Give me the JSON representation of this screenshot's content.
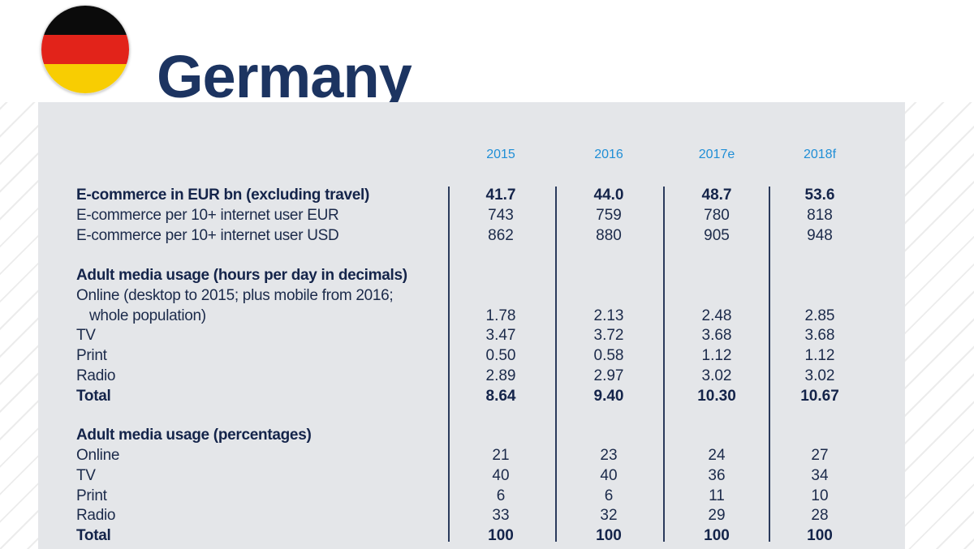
{
  "title": "Germany",
  "flag_colors": [
    "#0b0b0b",
    "#e2231a",
    "#f8cd02"
  ],
  "years": [
    "2015",
    "2016",
    "2017e",
    "2018f"
  ],
  "rows": [
    {
      "label": "E-commerce in EUR bn (excluding travel)",
      "values": [
        "41.7",
        "44.0",
        "48.7",
        "53.6"
      ]
    },
    {
      "label": "E-commerce per 10+ internet user EUR",
      "values": [
        "743",
        "759",
        "780",
        "818"
      ]
    },
    {
      "label": "E-commerce per 10+ internet user USD",
      "values": [
        "862",
        "880",
        "905",
        "948"
      ]
    },
    {
      "label": "Adult media usage (hours per day in decimals)"
    },
    {
      "label": "Online (desktop to 2015; plus mobile from 2016;"
    },
    {
      "label": "whole population)",
      "values": [
        "1.78",
        "2.13",
        "2.48",
        "2.85"
      ]
    },
    {
      "label": "TV",
      "values": [
        "3.47",
        "3.72",
        "3.68",
        "3.68"
      ]
    },
    {
      "label": "Print",
      "values": [
        "0.50",
        "0.58",
        "1.12",
        "1.12"
      ]
    },
    {
      "label": "Radio",
      "values": [
        "2.89",
        "2.97",
        "3.02",
        "3.02"
      ]
    },
    {
      "label": "Total",
      "values": [
        "8.64",
        "9.40",
        "10.30",
        "10.67"
      ]
    },
    {
      "label": "Adult media usage (percentages)"
    },
    {
      "label": "Online",
      "values": [
        "21",
        "23",
        "24",
        "27"
      ]
    },
    {
      "label": "TV",
      "values": [
        "40",
        "40",
        "36",
        "34"
      ]
    },
    {
      "label": "Print",
      "values": [
        "6",
        "6",
        "11",
        "10"
      ]
    },
    {
      "label": "Radio",
      "values": [
        "33",
        "32",
        "29",
        "28"
      ]
    },
    {
      "label": "Total",
      "values": [
        "100",
        "100",
        "100",
        "100"
      ]
    }
  ]
}
